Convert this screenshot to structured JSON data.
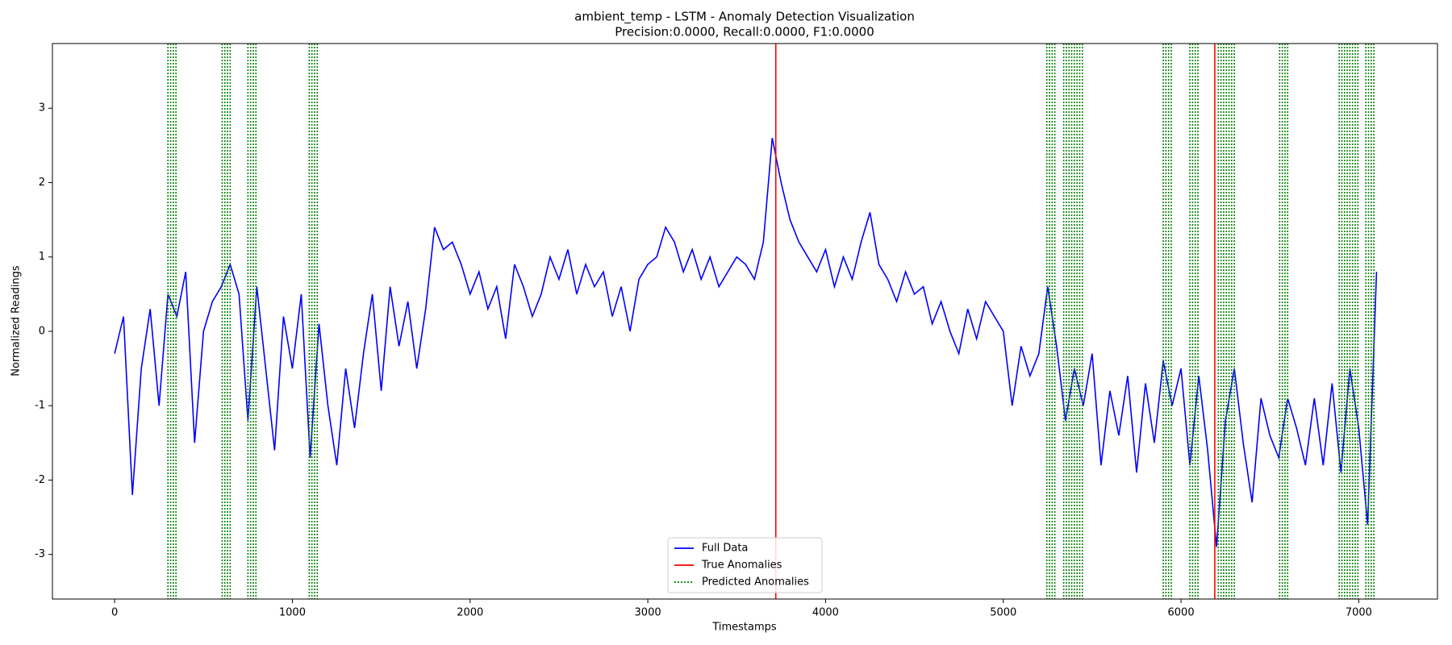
{
  "chart_data": {
    "type": "line",
    "title": "ambient_temp - LSTM - Anomaly Detection Visualization",
    "subtitle": "Precision:0.0000, Recall:0.0000, F1:0.0000",
    "x_label": "Timestamps",
    "y_label": "Normalized Readings",
    "x": [
      0,
      50,
      100,
      150,
      200,
      250,
      300,
      350,
      400,
      450,
      500,
      550,
      600,
      650,
      700,
      750,
      800,
      850,
      900,
      950,
      1000,
      1050,
      1100,
      1150,
      1200,
      1250,
      1300,
      1350,
      1400,
      1450,
      1500,
      1550,
      1600,
      1650,
      1700,
      1750,
      1800,
      1850,
      1900,
      1950,
      2000,
      2050,
      2100,
      2150,
      2200,
      2250,
      2300,
      2350,
      2400,
      2450,
      2500,
      2550,
      2600,
      2650,
      2700,
      2750,
      2800,
      2850,
      2900,
      2950,
      3000,
      3050,
      3100,
      3150,
      3200,
      3250,
      3300,
      3350,
      3400,
      3450,
      3500,
      3550,
      3600,
      3650,
      3700,
      3750,
      3800,
      3850,
      3900,
      3950,
      4000,
      4050,
      4100,
      4150,
      4200,
      4250,
      4300,
      4350,
      4400,
      4450,
      4500,
      4550,
      4600,
      4650,
      4700,
      4750,
      4800,
      4850,
      4900,
      4950,
      5000,
      5050,
      5100,
      5150,
      5200,
      5250,
      5300,
      5350,
      5400,
      5450,
      5500,
      5550,
      5600,
      5650,
      5700,
      5750,
      5800,
      5850,
      5900,
      5950,
      6000,
      6050,
      6100,
      6150,
      6200,
      6250,
      6300,
      6350,
      6400,
      6450,
      6500,
      6550,
      6600,
      6650,
      6700,
      6750,
      6800,
      6850,
      6900,
      6950,
      7000,
      7050,
      7100
    ],
    "series": [
      {
        "name": "Full Data",
        "color": "#0000ff",
        "values": [
          -0.3,
          0.2,
          -2.2,
          -0.5,
          0.3,
          -1.0,
          0.5,
          0.2,
          0.8,
          -1.5,
          0.0,
          0.4,
          0.6,
          0.9,
          0.5,
          -1.2,
          0.6,
          -0.5,
          -1.6,
          0.2,
          -0.5,
          0.5,
          -1.7,
          0.1,
          -1.0,
          -1.8,
          -0.5,
          -1.3,
          -0.3,
          0.5,
          -0.8,
          0.6,
          -0.2,
          0.4,
          -0.5,
          0.3,
          1.4,
          1.1,
          1.2,
          0.9,
          0.5,
          0.8,
          0.3,
          0.6,
          -0.1,
          0.9,
          0.6,
          0.2,
          0.5,
          1.0,
          0.7,
          1.1,
          0.5,
          0.9,
          0.6,
          0.8,
          0.2,
          0.6,
          0.0,
          0.7,
          0.9,
          1.0,
          1.4,
          1.2,
          0.8,
          1.1,
          0.7,
          1.0,
          0.6,
          0.8,
          1.0,
          0.9,
          0.7,
          1.2,
          2.6,
          2.0,
          1.5,
          1.2,
          1.0,
          0.8,
          1.1,
          0.6,
          1.0,
          0.7,
          1.2,
          1.6,
          0.9,
          0.7,
          0.4,
          0.8,
          0.5,
          0.6,
          0.1,
          0.4,
          0.0,
          -0.3,
          0.3,
          -0.1,
          0.4,
          0.2,
          0.0,
          -1.0,
          -0.2,
          -0.6,
          -0.3,
          0.6,
          -0.2,
          -1.2,
          -0.5,
          -1.0,
          -0.3,
          -1.8,
          -0.8,
          -1.4,
          -0.6,
          -1.9,
          -0.7,
          -1.5,
          -0.4,
          -1.0,
          -0.5,
          -1.8,
          -0.6,
          -1.6,
          -2.9,
          -1.2,
          -0.5,
          -1.5,
          -2.3,
          -0.9,
          -1.4,
          -1.7,
          -0.9,
          -1.3,
          -1.8,
          -0.9,
          -1.8,
          -0.7,
          -1.9,
          -0.5,
          -1.3,
          -2.6,
          0.8
        ]
      }
    ],
    "true_anomalies": {
      "name": "True Anomalies",
      "color": "#ff0000",
      "x": [
        3720,
        6190
      ]
    },
    "predicted_anomalies": {
      "name": "Predicted Anomalies",
      "color": "#008000",
      "x": [
        300,
        315,
        330,
        345,
        605,
        620,
        635,
        650,
        750,
        765,
        780,
        795,
        1095,
        1110,
        1125,
        1140,
        5245,
        5260,
        5275,
        5290,
        5340,
        5355,
        5370,
        5385,
        5400,
        5415,
        5430,
        5445,
        5900,
        5915,
        5930,
        5945,
        6050,
        6065,
        6080,
        6095,
        6210,
        6225,
        6240,
        6255,
        6270,
        6285,
        6300,
        6555,
        6570,
        6585,
        6600,
        6890,
        6905,
        6920,
        6935,
        6950,
        6965,
        6980,
        6995,
        7040,
        7055,
        7070,
        7085
      ]
    },
    "xlim": [
      -350,
      7443
    ],
    "xticks": [
      0,
      1000,
      2000,
      3000,
      4000,
      5000,
      6000,
      7000
    ],
    "ylim": [
      -3.6,
      3.87
    ],
    "yticks": [
      -3,
      -2,
      -1,
      0,
      1,
      2,
      3
    ],
    "legend": "lower center"
  }
}
